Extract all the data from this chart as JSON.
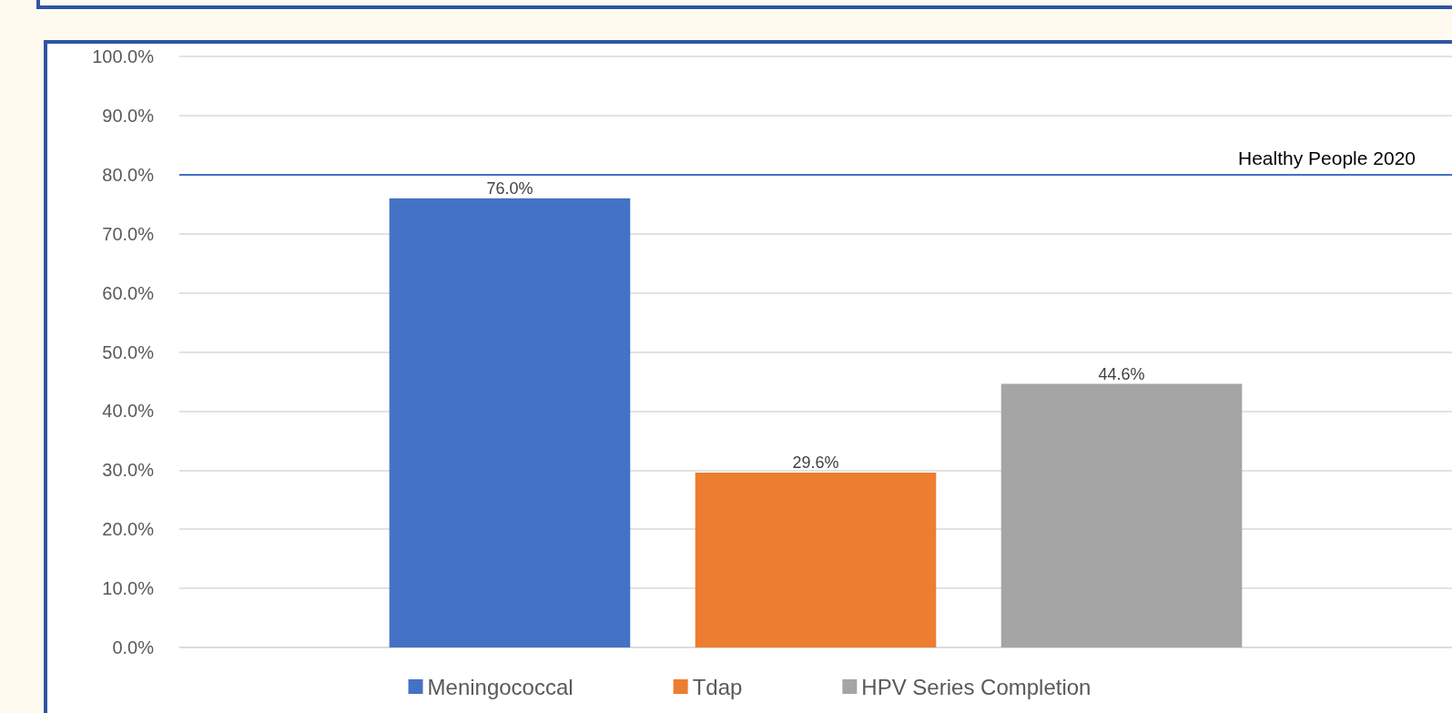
{
  "chart_data": {
    "type": "bar",
    "categories": [
      null
    ],
    "series": [
      {
        "name": "Meningococcal",
        "color": "#4472c4",
        "values": [
          76.0
        ],
        "value_labels": [
          "76.0%"
        ]
      },
      {
        "name": "Tdap",
        "color": "#ed7d31",
        "values": [
          29.6
        ],
        "value_labels": [
          "29.6%"
        ]
      },
      {
        "name": "HPV Series Completion",
        "color": "#a5a5a5",
        "values": [
          44.6
        ],
        "value_labels": [
          "44.6%"
        ]
      }
    ],
    "ylim": [
      0,
      100
    ],
    "yticks": [
      {
        "value": 0,
        "label": "0.0%"
      },
      {
        "value": 10,
        "label": "10.0%"
      },
      {
        "value": 20,
        "label": "20.0%"
      },
      {
        "value": 30,
        "label": "30.0%"
      },
      {
        "value": 40,
        "label": "40.0%"
      },
      {
        "value": 50,
        "label": "50.0%"
      },
      {
        "value": 60,
        "label": "60.0%"
      },
      {
        "value": 70,
        "label": "70.0%"
      },
      {
        "value": 80,
        "label": "80.0%"
      },
      {
        "value": 90,
        "label": "90.0%"
      },
      {
        "value": 100,
        "label": "100.0%"
      }
    ],
    "ref_lines": [
      {
        "axis": "y",
        "value": 80,
        "label": "Healthy People 2020",
        "color": "#4472c4"
      }
    ],
    "grid": "y",
    "legend": "bottom"
  }
}
